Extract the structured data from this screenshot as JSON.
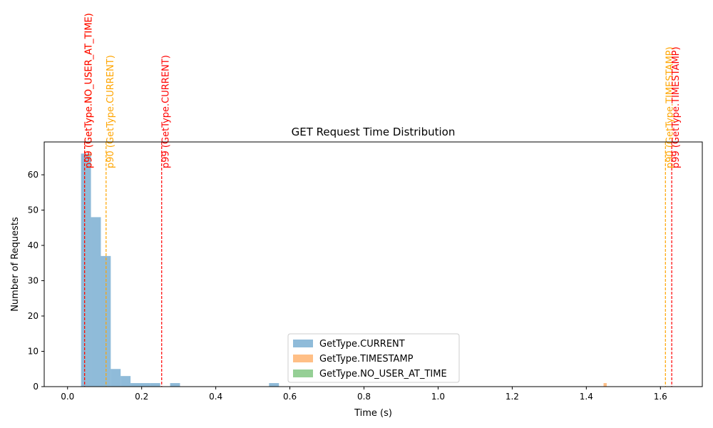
{
  "chart_data": {
    "type": "bar",
    "title": "GET Request Time Distribution",
    "xlabel": "Time (s)",
    "ylabel": "Number of Requests",
    "xlim": [
      -0.063,
      1.713
    ],
    "ylim": [
      0,
      69.3
    ],
    "xticks": [
      0.0,
      0.2,
      0.4,
      0.6,
      0.8,
      1.0,
      1.2,
      1.4,
      1.6
    ],
    "xtick_labels": [
      "0.0",
      "0.2",
      "0.4",
      "0.6",
      "0.8",
      "1.0",
      "1.2",
      "1.4",
      "1.6"
    ],
    "yticks": [
      0,
      10,
      20,
      30,
      40,
      50,
      60
    ],
    "ytick_labels": [
      "0",
      "10",
      "20",
      "30",
      "40",
      "50",
      "60"
    ],
    "grid": false,
    "legend_position": "bottom-center",
    "series": [
      {
        "name": "GetType.CURRENT",
        "color": "#1f77b4",
        "alpha": 0.5,
        "bins": [
          {
            "x0": 0.0365,
            "x1": 0.0632,
            "count": 66
          },
          {
            "x0": 0.0632,
            "x1": 0.0899,
            "count": 48
          },
          {
            "x0": 0.0899,
            "x1": 0.1166,
            "count": 37
          },
          {
            "x0": 0.1166,
            "x1": 0.1433,
            "count": 5
          },
          {
            "x0": 0.1433,
            "x1": 0.17,
            "count": 3
          },
          {
            "x0": 0.17,
            "x1": 0.1967,
            "count": 1
          },
          {
            "x0": 0.1967,
            "x1": 0.2234,
            "count": 1
          },
          {
            "x0": 0.2234,
            "x1": 0.2501,
            "count": 1
          },
          {
            "x0": 0.2768,
            "x1": 0.3035,
            "count": 1
          },
          {
            "x0": 0.5438,
            "x1": 0.5705,
            "count": 1
          }
        ]
      },
      {
        "name": "GetType.TIMESTAMP",
        "color": "#ff7f0e",
        "alpha": 0.5,
        "bins": [
          {
            "x0": 1.4465,
            "x1": 1.455,
            "count": 1
          }
        ]
      },
      {
        "name": "GetType.NO_USER_AT_TIME",
        "color": "#2ca02c",
        "alpha": 0.5,
        "bins": []
      }
    ],
    "reference_lines": [
      {
        "x": 0.046,
        "label": "p90 (GetType.NO_USER_AT_TIME)",
        "color": "#ffa500"
      },
      {
        "x": 0.046,
        "label": "p99 (GetType.NO_USER_AT_TIME)",
        "color": "#ff0000"
      },
      {
        "x": 0.104,
        "label": "p90 (GetType.CURRENT)",
        "color": "#ffa500"
      },
      {
        "x": 0.254,
        "label": "p99 (GetType.CURRENT)",
        "color": "#ff0000"
      },
      {
        "x": 1.6135,
        "label": "p90 (GetType.TIMESTAMP)",
        "color": "#ffa500"
      },
      {
        "x": 1.6305,
        "label": "p99 (GetType.TIMESTAMP)",
        "color": "#ff0000"
      }
    ]
  }
}
